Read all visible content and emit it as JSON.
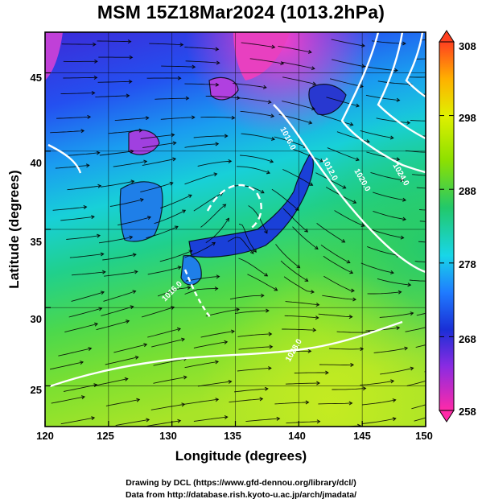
{
  "header": {
    "title": "MSM 15Z18Mar2024 (1013.2hPa)"
  },
  "axes": {
    "xlabel": "Longitude (degrees)",
    "ylabel": "Latitude  (degrees)",
    "x_ticks": [
      "120",
      "125",
      "130",
      "135",
      "140",
      "145",
      "150"
    ],
    "y_ticks": [
      "45",
      "40",
      "35",
      "30",
      "25"
    ],
    "x_range": [
      120,
      150
    ],
    "y_range": [
      22.4,
      47.6
    ],
    "grid": true
  },
  "colorbar": {
    "ticks": [
      "308",
      "298",
      "288",
      "278",
      "268",
      "258"
    ],
    "range": [
      258,
      308
    ],
    "palette": [
      "#ff2aa8",
      "#8a2be2",
      "#1a2fd6",
      "#1f7bff",
      "#18d6e8",
      "#22c86a",
      "#8ee000",
      "#e0f000",
      "#ffb000",
      "#ff4020"
    ]
  },
  "contours": {
    "labels": [
      "1016.0",
      "1012.0",
      "1016.0",
      "1020.0",
      "1024.0",
      "1028.0"
    ],
    "line_color": "#ffffff"
  },
  "credits": {
    "line1": "Drawing by DCL (https://www.gfd-dennou.org/library/dcl/)",
    "line2": "Data from http://database.rish.kyoto-u.ac.jp/arch/jmadata/"
  }
}
